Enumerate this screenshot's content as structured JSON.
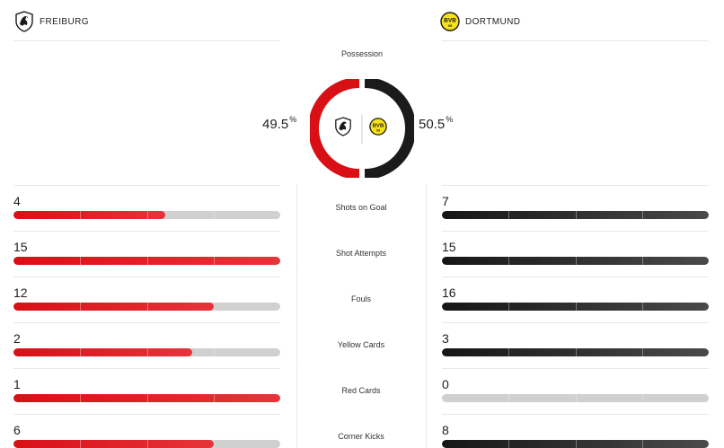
{
  "home": {
    "name": "FREIBURG",
    "logo_icon": "freiburg-crest-icon",
    "possession": 49.5,
    "possession_label": "49.5",
    "color": "#d81016"
  },
  "away": {
    "name": "DORTMUND",
    "logo_icon": "dortmund-crest-icon",
    "possession": 50.5,
    "possession_label": "50.5",
    "color": "#1b1b1b",
    "badge_color": "#f7e11a",
    "badge_text": "BVB"
  },
  "possession": {
    "title": "Possession",
    "unit": "%"
  },
  "stats": [
    {
      "label": "Shots on Goal",
      "home": "4",
      "away": "7",
      "home_fill": 0.57,
      "away_fill": 1.0
    },
    {
      "label": "Shot Attempts",
      "home": "15",
      "away": "15",
      "home_fill": 1.0,
      "away_fill": 1.0
    },
    {
      "label": "Fouls",
      "home": "12",
      "away": "16",
      "home_fill": 0.75,
      "away_fill": 1.0
    },
    {
      "label": "Yellow Cards",
      "home": "2",
      "away": "3",
      "home_fill": 0.67,
      "away_fill": 1.0
    },
    {
      "label": "Red Cards",
      "home": "1",
      "away": "0",
      "home_fill": 1.0,
      "away_fill": 0.0
    },
    {
      "label": "Corner Kicks",
      "home": "6",
      "away": "8",
      "home_fill": 0.75,
      "away_fill": 1.0
    }
  ]
}
